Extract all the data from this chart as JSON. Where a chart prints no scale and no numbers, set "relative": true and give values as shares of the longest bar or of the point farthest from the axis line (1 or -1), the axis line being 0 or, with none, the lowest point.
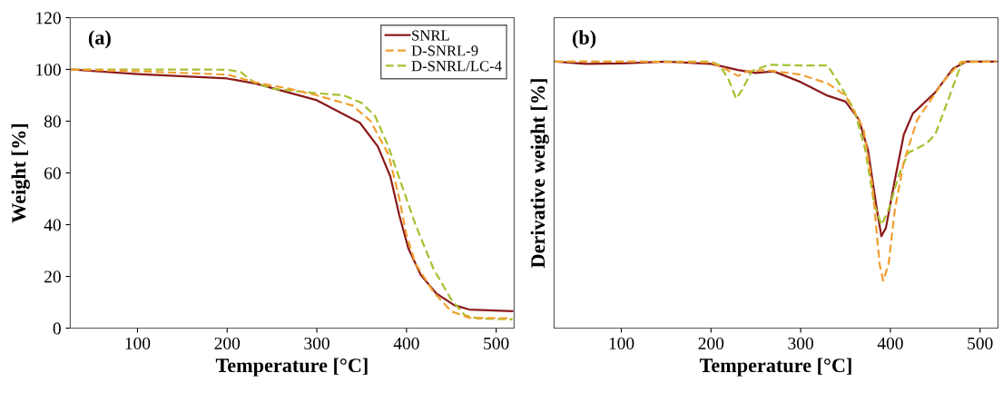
{
  "chart_data": [
    {
      "type": "line",
      "title": "(a)",
      "xlabel": "Temperature [°C]",
      "ylabel": "Weight [%]",
      "xlim": [
        25,
        520
      ],
      "xticks": [
        100,
        200,
        300,
        400,
        500
      ],
      "ylim": [
        0,
        120
      ],
      "yticks": [
        0,
        20,
        40,
        60,
        80,
        100,
        120
      ],
      "grid": false,
      "legend": "top right",
      "series": [
        {
          "name": "SNRL",
          "color": "#8b1a1a",
          "line_style": "solid",
          "x": [
            26,
            100,
            200,
            232,
            300,
            348,
            368,
            382,
            392,
            402,
            416,
            433,
            453,
            470,
            518
          ],
          "values": [
            100,
            98.2,
            96.5,
            94.5,
            88.1,
            79.4,
            70.2,
            58.6,
            43.6,
            30.9,
            20.5,
            13.5,
            8.9,
            7.2,
            6.6
          ]
        },
        {
          "name": "D-SNRL-9",
          "color": "#f0a030",
          "line_style": "dashed",
          "x": [
            26,
            100,
            200,
            232,
            270,
            300,
            340,
            360,
            380,
            392,
            400,
            410,
            430,
            450,
            470,
            518
          ],
          "values": [
            100,
            99.3,
            98,
            95,
            92.5,
            90,
            86,
            80,
            67,
            50,
            36,
            25,
            14,
            6.5,
            4,
            3.8
          ]
        },
        {
          "name": "D-SNRL/LC-4",
          "color": "#a8c030",
          "line_style": "dashed",
          "x": [
            26,
            100,
            200,
            215,
            230,
            250,
            300,
            330,
            350,
            365,
            380,
            395,
            410,
            430,
            450,
            465,
            480,
            518
          ],
          "values": [
            100,
            100,
            99.9,
            99,
            95,
            92.6,
            90.8,
            90,
            87,
            82,
            70,
            55,
            40,
            23,
            11,
            5,
            3.7,
            3.4
          ]
        }
      ]
    },
    {
      "type": "line",
      "title": "(b)",
      "xlabel": "Temperature [°C]",
      "ylabel": "Derivative weight [%]",
      "xlim": [
        25,
        520
      ],
      "xticks": [
        100,
        200,
        300,
        400,
        500
      ],
      "relative": true,
      "tick_labels": "x",
      "grid": false,
      "legend": false,
      "series": [
        {
          "color": "#8b1a1a",
          "line_style": "solid",
          "x": [
            26,
            60,
            100,
            150,
            200,
            230,
            250,
            270,
            300,
            330,
            350,
            365,
            375,
            385,
            390,
            395,
            405,
            415,
            425,
            450,
            470,
            485,
            518
          ],
          "values": [
            1.0,
            0.991,
            0.993,
            1.0,
            0.991,
            0.968,
            0.957,
            0.963,
            0.923,
            0.872,
            0.85,
            0.782,
            0.669,
            0.444,
            0.345,
            0.376,
            0.556,
            0.726,
            0.805,
            0.884,
            0.974,
            1.0,
            1.0
          ]
        },
        {
          "color": "#f0a030",
          "line_style": "dashed",
          "x": [
            26,
            100,
            200,
            215,
            230,
            240,
            260,
            300,
            330,
            350,
            370,
            380,
            388,
            392,
            398,
            405,
            415,
            430,
            460,
            478,
            518
          ],
          "values": [
            1.0,
            1.0,
            0.997,
            0.974,
            0.946,
            0.963,
            0.968,
            0.951,
            0.918,
            0.872,
            0.748,
            0.534,
            0.24,
            0.178,
            0.24,
            0.444,
            0.624,
            0.782,
            0.929,
            0.997,
            1.0
          ]
        },
        {
          "color": "#a8c030",
          "line_style": "dashed",
          "x": [
            26,
            100,
            200,
            210,
            220,
            228,
            235,
            245,
            265,
            300,
            330,
            345,
            360,
            372,
            382,
            390,
            398,
            410,
            420,
            440,
            450,
            465,
            480,
            518
          ],
          "values": [
            1.0,
            1.0,
            1.0,
            0.985,
            0.929,
            0.861,
            0.895,
            0.963,
            0.988,
            0.985,
            0.985,
            0.906,
            0.816,
            0.669,
            0.466,
            0.387,
            0.444,
            0.579,
            0.658,
            0.692,
            0.726,
            0.861,
            1.0,
            1.0
          ]
        }
      ]
    }
  ]
}
